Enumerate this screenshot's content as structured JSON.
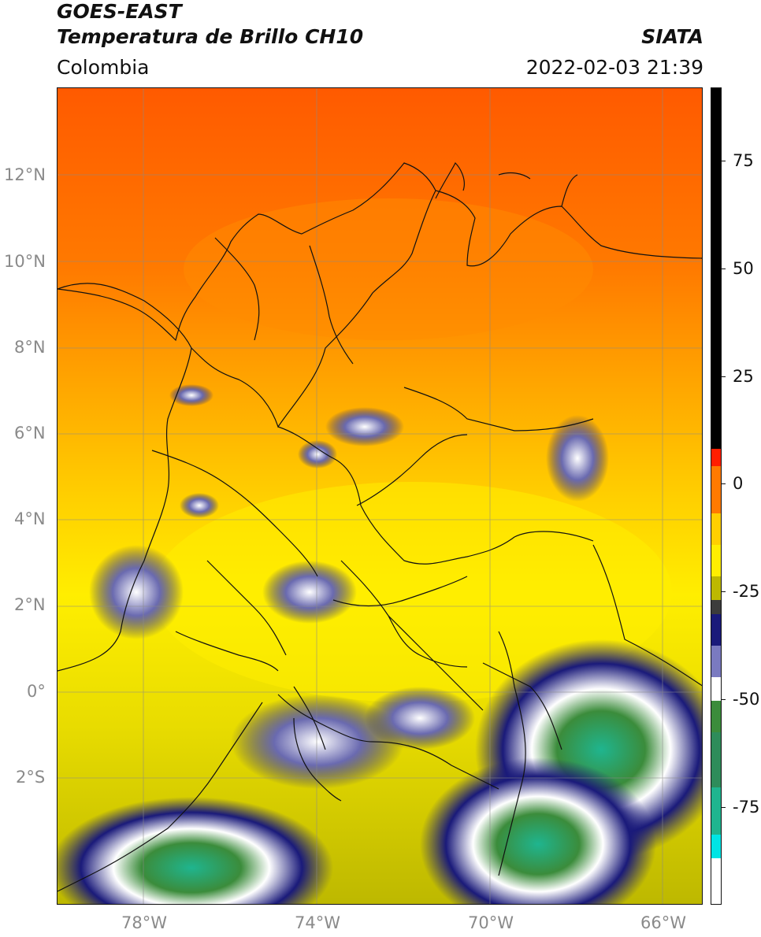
{
  "header": {
    "satellite": "GOES-EAST",
    "product": "Temperatura de Brillo CH10",
    "organization": "SIATA",
    "region": "Colombia",
    "timestamp": "2022-02-03 21:39"
  },
  "map": {
    "lat_labels": [
      "12°N",
      "10°N",
      "8°N",
      "6°N",
      "4°N",
      "2°N",
      "0°",
      "2°S"
    ],
    "lon_labels": [
      "78°W",
      "74°W",
      "70°W",
      "66°W"
    ],
    "colors": {
      "warm": "#ff5a00",
      "orange": "#ff9900",
      "yellow": "#ffee00",
      "olive": "#bdb800",
      "navy": "#1a1a7a",
      "white": "#ffffff",
      "green": "#3b8c3b",
      "teal": "#1fb58f"
    }
  },
  "colorbar": {
    "labels": [
      "75",
      "50",
      "25",
      "0",
      "-25",
      "-50",
      "-75"
    ],
    "values": [
      75,
      50,
      25,
      0,
      -25,
      -50,
      -75
    ],
    "range": [
      -95,
      90
    ]
  }
}
